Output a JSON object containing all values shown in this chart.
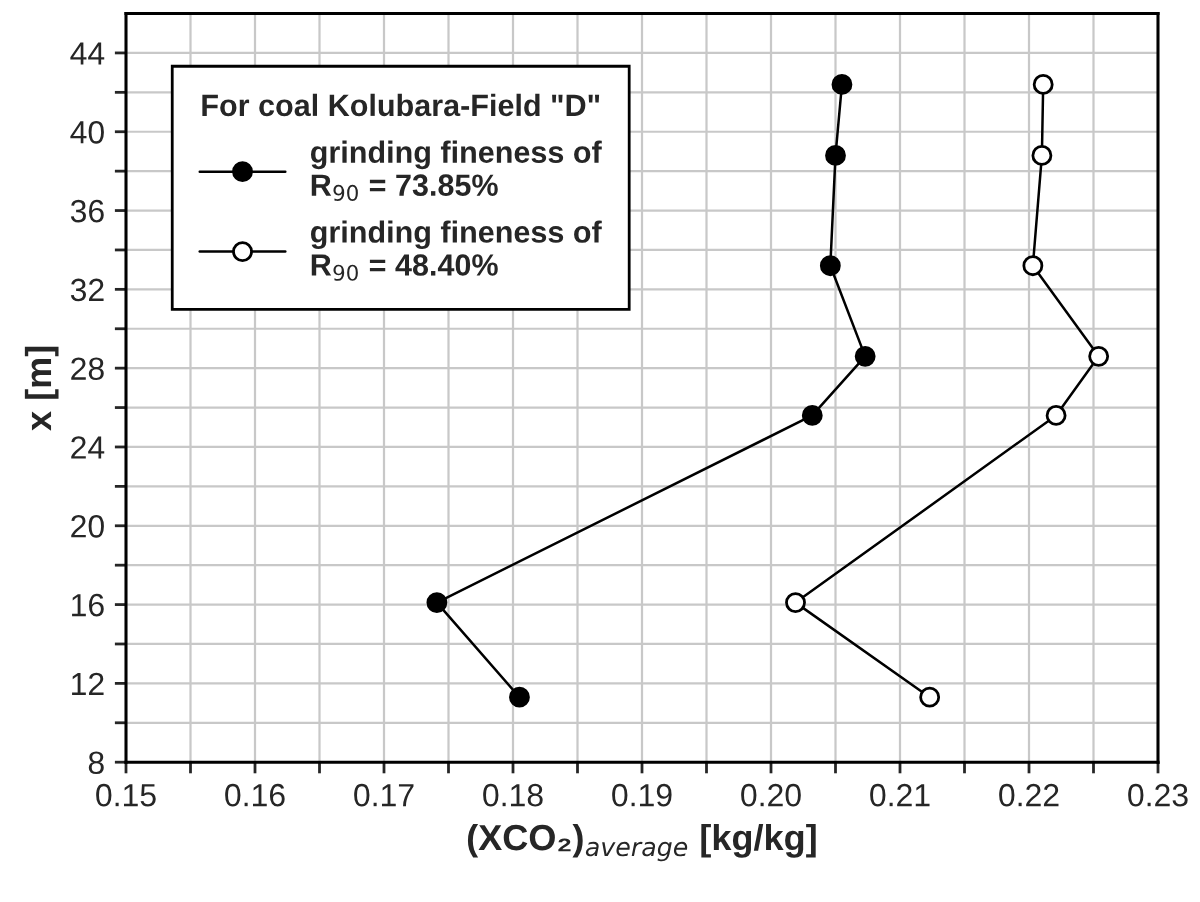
{
  "chart_data": {
    "type": "line",
    "xlabel": "(XCO₂)$_{average}$ [kg/kg]",
    "ylabel": "x [m]",
    "legend_title": "For coal Kolubara-Field \"D\"",
    "legend": "top left",
    "grid": true,
    "marker": "circle",
    "line_style": "solid",
    "xlim": [
      0.15,
      0.23
    ],
    "ylim": [
      8,
      46
    ],
    "xticks": [
      0.15,
      {
        "value": 0.155,
        "label": null
      },
      0.16,
      {
        "value": 0.165,
        "label": null
      },
      0.17,
      {
        "value": 0.175,
        "label": null
      },
      0.18,
      {
        "value": 0.185,
        "label": null
      },
      0.19,
      {
        "value": 0.195,
        "label": null
      },
      {
        "value": 0.2,
        "label": "0.20"
      },
      {
        "value": 0.205,
        "label": null
      },
      0.21,
      {
        "value": 0.215,
        "label": null
      },
      0.22,
      {
        "value": 0.225,
        "label": null
      },
      0.23
    ],
    "yticks": [
      8,
      {
        "value": 10,
        "label": null
      },
      12,
      {
        "value": 14,
        "label": null
      },
      16,
      {
        "value": 18,
        "label": null
      },
      20,
      {
        "value": 22,
        "label": null
      },
      24,
      {
        "value": 26,
        "label": null
      },
      28,
      {
        "value": 30,
        "label": null
      },
      32,
      {
        "value": 34,
        "label": null
      },
      36,
      {
        "value": 38,
        "label": null
      },
      40,
      {
        "value": 42,
        "label": null
      },
      44
    ],
    "series": [
      {
        "name": "grinding fineness of\nR$_{90}$ = 73.85%",
        "color": "#000000",
        "x": [
          0.2055,
          0.205,
          0.2046,
          0.2073,
          0.2032,
          0.1741,
          0.1805
        ],
        "values": [
          42.4,
          38.8,
          33.2,
          28.6,
          25.6,
          16.1,
          11.3
        ]
      },
      {
        "name": "grinding fineness of\nR$_{90}$ = 48.40%",
        "color": "#ffffff",
        "x": [
          0.2211,
          0.221,
          0.2203,
          0.2254,
          0.2221,
          0.2019,
          0.2123
        ],
        "values": [
          42.4,
          38.8,
          33.2,
          28.6,
          25.6,
          16.1,
          11.3
        ]
      }
    ]
  }
}
